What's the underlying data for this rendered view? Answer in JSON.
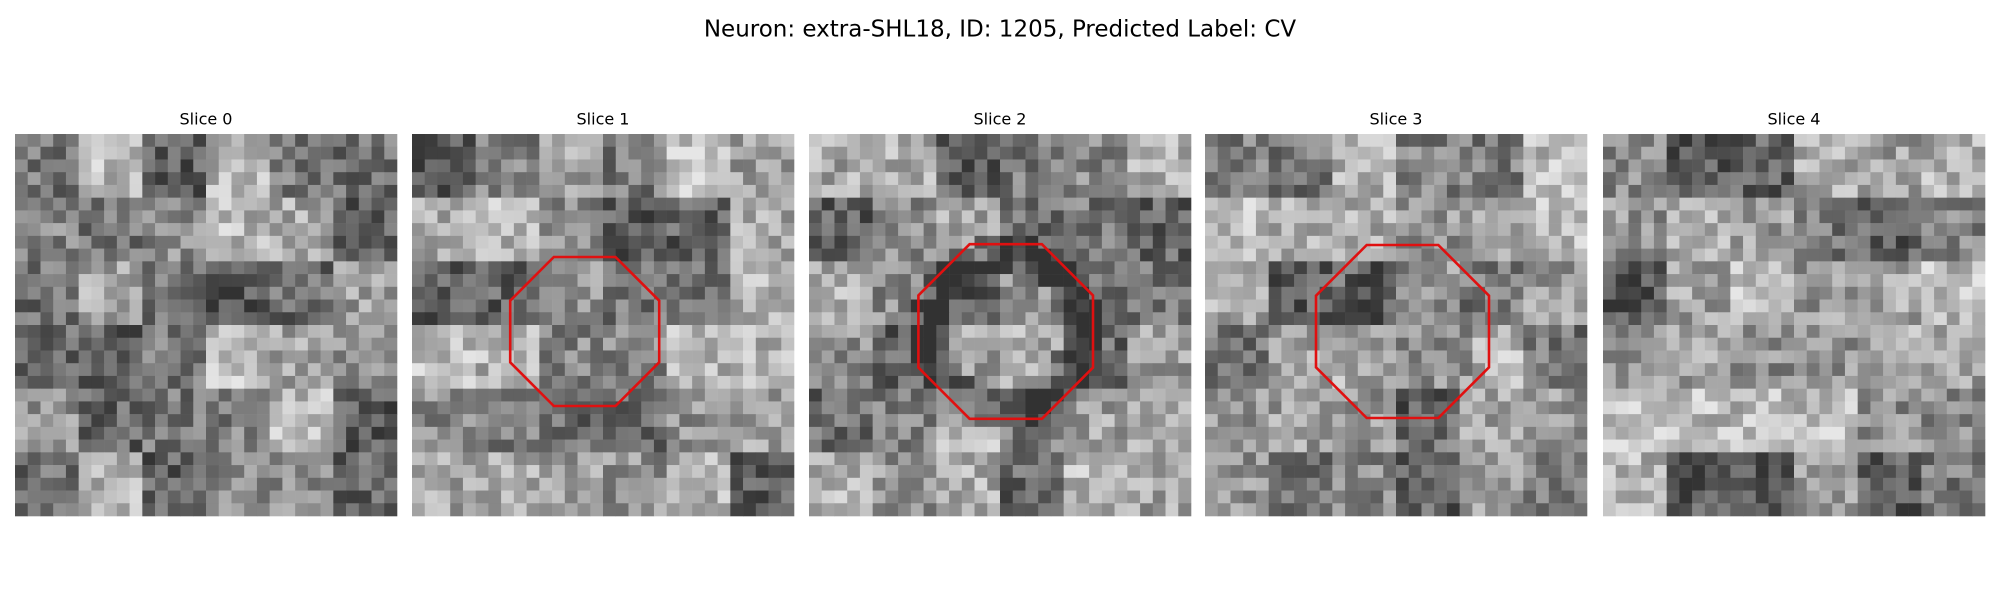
{
  "figure": {
    "title": "Neuron: extra-SHL18, ID: 1205, Predicted Label: CV",
    "panels": [
      {
        "title": "Slice 0"
      },
      {
        "title": "Slice 1"
      },
      {
        "title": "Slice 2"
      },
      {
        "title": "Slice 3"
      },
      {
        "title": "Slice 4"
      }
    ]
  }
}
